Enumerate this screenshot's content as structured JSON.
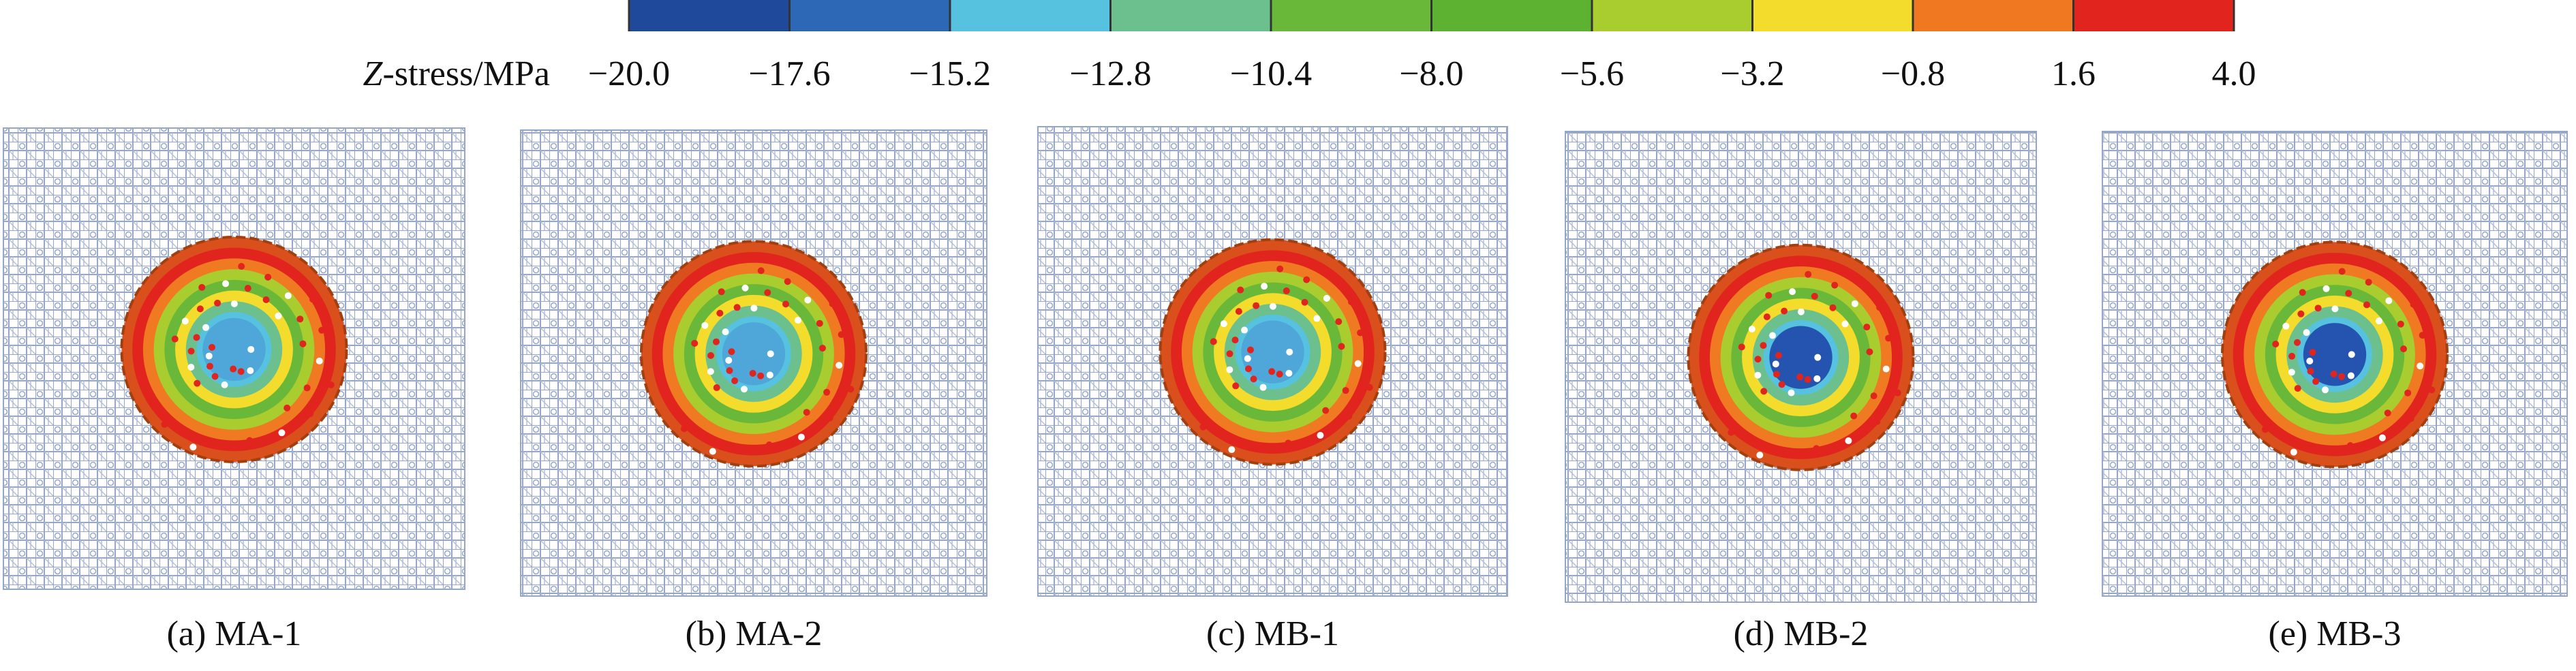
{
  "colorbar": {
    "label_italic": "Z",
    "label": "-stress/MPa",
    "ticks": [
      {
        "value": -20.0,
        "label": "−20.0"
      },
      {
        "value": -17.6,
        "label": "−17.6"
      },
      {
        "value": -15.2,
        "label": "−15.2"
      },
      {
        "value": -12.8,
        "label": "−12.8"
      },
      {
        "value": -10.4,
        "label": "−10.4"
      },
      {
        "value": -8.0,
        "label": "−8.0"
      },
      {
        "value": -5.6,
        "label": "−5.6"
      },
      {
        "value": -3.2,
        "label": "−3.2"
      },
      {
        "value": -0.8,
        "label": "−0.8"
      },
      {
        "value": 1.6,
        "label": "1.6"
      },
      {
        "value": 4.0,
        "label": "4.0"
      }
    ],
    "colors": [
      "#1f4a9c",
      "#2c68b6",
      "#56c2e0",
      "#6cc08e",
      "#6ab83a",
      "#5db232",
      "#a9cc2e",
      "#f3dc2c",
      "#ef7820",
      "#e2241f"
    ]
  },
  "panels": [
    {
      "caption": "(a) MA-1"
    },
    {
      "caption": "(b) MA-2"
    },
    {
      "caption": "(c) MB-1"
    },
    {
      "caption": "(d) MB-2"
    },
    {
      "caption": "(e) MB-3"
    }
  ]
}
